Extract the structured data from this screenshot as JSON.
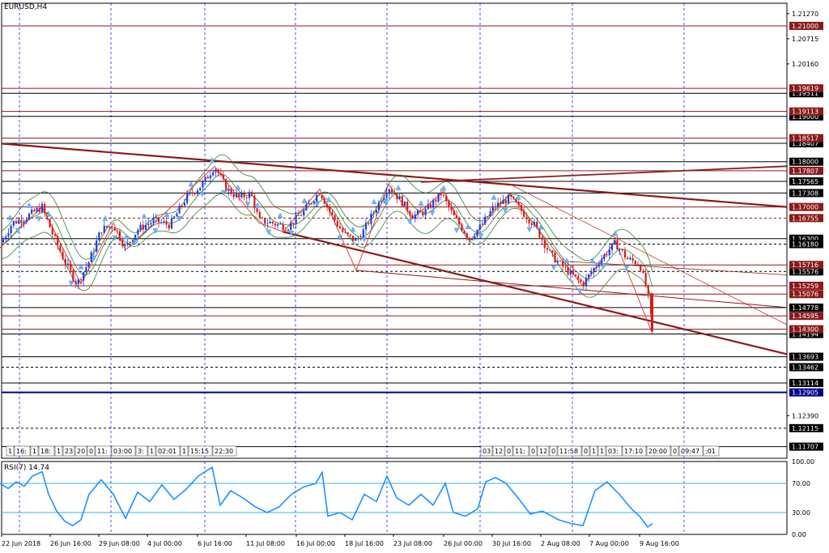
{
  "chart_data": [
    {
      "type": "candlestick",
      "title": "EURUSD,H4",
      "price_axis": {
        "range": [
          1.1145,
          1.215
        ],
        "ticks": [
          "1.21270",
          "1.20715",
          "1.20160",
          "1.19511",
          "1.19000",
          "1.18407",
          "1.18000",
          "1.17565",
          "1.17308",
          "1.17000",
          "1.16755",
          "1.16300",
          "1.16180",
          "1.15576",
          "1.15076",
          "1.14778",
          "1.14595",
          "1.14194",
          "1.13693",
          "1.13462",
          "1.13114",
          "1.12905",
          "1.12390",
          "1.12115",
          "1.11707"
        ]
      },
      "horizontal_levels": [
        {
          "price": 1.21,
          "label": "1.21000",
          "color": "#8b1a1a",
          "badge": true
        },
        {
          "price": 1.19511,
          "label": "1.19511",
          "color": "#000000",
          "badge": true
        },
        {
          "price": 1.1962,
          "label": "1.19619",
          "color": "#8b1a1a",
          "badge": true
        },
        {
          "price": 1.1911,
          "label": "1.19113",
          "color": "#8b1a1a",
          "badge": true
        },
        {
          "price": 1.19,
          "label": "1.19000",
          "color": "#000000",
          "badge": true
        },
        {
          "price": 1.1852,
          "label": "1.18517",
          "color": "#8b1a1a",
          "badge": true
        },
        {
          "price": 1.18407,
          "label": "1.18407",
          "color": "#000000",
          "badge": true
        },
        {
          "price": 1.18,
          "label": "1.18000",
          "color": "#000000",
          "badge": true
        },
        {
          "price": 1.178,
          "label": "1.17807",
          "color": "#8b1a1a",
          "badge": true
        },
        {
          "price": 1.17565,
          "label": "1.17565",
          "color": "#000000",
          "badge": true
        },
        {
          "price": 1.17308,
          "label": "1.17308",
          "color": "#000000",
          "badge": true
        },
        {
          "price": 1.17,
          "label": "1.17000",
          "color": "#8b1a1a",
          "badge": true
        },
        {
          "price": 1.16755,
          "label": "1.16755",
          "color": "#8b1a1a",
          "badge": true,
          "dashed": true
        },
        {
          "price": 1.163,
          "label": "1.16300",
          "color": "#000000",
          "badge": true
        },
        {
          "price": 1.1618,
          "label": "1.16180",
          "color": "#000000",
          "badge": true,
          "dashed": true
        },
        {
          "price": 1.1572,
          "label": "1.15716",
          "color": "#8b1a1a",
          "badge": true
        },
        {
          "price": 1.15576,
          "label": "1.15576",
          "color": "#000000",
          "badge": true,
          "dashed": true
        },
        {
          "price": 1.1526,
          "label": "1.15259",
          "color": "#8b1a1a",
          "badge": true
        },
        {
          "price": 1.15076,
          "label": "1.15076",
          "color": "#8b1a1a",
          "badge": true
        },
        {
          "price": 1.14778,
          "label": "1.14778",
          "color": "#000000",
          "badge": true
        },
        {
          "price": 1.14595,
          "label": "1.14595",
          "color": "#8b1a1a",
          "badge": true
        },
        {
          "price": 1.143,
          "label": "1.14300",
          "color": "#8b1a1a",
          "badge": true
        },
        {
          "price": 1.14194,
          "label": "1.14194",
          "color": "#000000",
          "badge": true
        },
        {
          "price": 1.13693,
          "label": "1.13693",
          "color": "#000000",
          "badge": true
        },
        {
          "price": 1.13462,
          "label": "1.13462",
          "color": "#000000",
          "badge": true,
          "dashed": true
        },
        {
          "price": 1.13114,
          "label": "1.13114",
          "color": "#000000",
          "badge": true
        },
        {
          "price": 1.12905,
          "label": "1.12905",
          "color": "#00008b",
          "badge": true,
          "thick": true
        },
        {
          "price": 1.12115,
          "label": "1.12115",
          "color": "#000000",
          "badge": true,
          "dashed": true
        },
        {
          "price": 1.11707,
          "label": "1.11707",
          "color": "#000000",
          "badge": true
        }
      ],
      "time_axis": [
        "22 Jun 2018",
        "26 Jun 16:00",
        "29 Jun 08:00",
        "4 Jul 00:00",
        "6 Jul 16:00",
        "11 Jul 08:00",
        "16 Jul 00:00",
        "18 Jul 16:00",
        "23 Jul 08:00",
        "26 Jul 00:00",
        "30 Jul 16:00",
        "2 Aug 08:00",
        "7 Aug 00:00",
        "9 Aug 16:00"
      ],
      "price_path": [
        [
          0,
          1.1615
        ],
        [
          15,
          1.1665
        ],
        [
          30,
          1.1675
        ],
        [
          52,
          1.17
        ],
        [
          65,
          1.164
        ],
        [
          80,
          1.158
        ],
        [
          95,
          1.153
        ],
        [
          110,
          1.158
        ],
        [
          125,
          1.165
        ],
        [
          140,
          1.166
        ],
        [
          155,
          1.161
        ],
        [
          170,
          1.165
        ],
        [
          190,
          1.167
        ],
        [
          210,
          1.166
        ],
        [
          230,
          1.172
        ],
        [
          250,
          1.175
        ],
        [
          265,
          1.179
        ],
        [
          280,
          1.174
        ],
        [
          295,
          1.172
        ],
        [
          310,
          1.173
        ],
        [
          320,
          1.167
        ],
        [
          335,
          1.1665
        ],
        [
          355,
          1.1655
        ],
        [
          375,
          1.169
        ],
        [
          395,
          1.1735
        ],
        [
          410,
          1.168
        ],
        [
          425,
          1.164
        ],
        [
          440,
          1.1625
        ],
        [
          450,
          1.165
        ],
        [
          465,
          1.17
        ],
        [
          480,
          1.1745
        ],
        [
          495,
          1.1715
        ],
        [
          510,
          1.168
        ],
        [
          525,
          1.169
        ],
        [
          545,
          1.173
        ],
        [
          560,
          1.168
        ],
        [
          580,
          1.163
        ],
        [
          595,
          1.166
        ],
        [
          610,
          1.17
        ],
        [
          630,
          1.172
        ],
        [
          645,
          1.169
        ],
        [
          660,
          1.166
        ],
        [
          680,
          1.1595
        ],
        [
          700,
          1.156
        ],
        [
          720,
          1.153
        ],
        [
          740,
          1.158
        ],
        [
          760,
          1.162
        ],
        [
          775,
          1.1585
        ],
        [
          790,
          1.1575
        ],
        [
          800,
          1.151
        ],
        [
          806,
          1.143
        ]
      ],
      "indicator": {
        "name": "RSI(7)",
        "value": "14.74",
        "range": [
          0,
          100
        ],
        "ticks": [
          "100.00",
          "70.00",
          "30.00",
          "0.00"
        ],
        "levels": [
          70,
          30
        ],
        "values": [
          [
            0,
            70
          ],
          [
            10,
            63
          ],
          [
            20,
            72
          ],
          [
            30,
            66
          ],
          [
            40,
            80
          ],
          [
            52,
            86
          ],
          [
            60,
            55
          ],
          [
            70,
            32
          ],
          [
            80,
            18
          ],
          [
            90,
            12
          ],
          [
            100,
            20
          ],
          [
            110,
            55
          ],
          [
            125,
            75
          ],
          [
            140,
            55
          ],
          [
            155,
            22
          ],
          [
            170,
            58
          ],
          [
            185,
            45
          ],
          [
            200,
            68
          ],
          [
            215,
            48
          ],
          [
            230,
            62
          ],
          [
            245,
            80
          ],
          [
            262,
            92
          ],
          [
            272,
            40
          ],
          [
            285,
            60
          ],
          [
            300,
            50
          ],
          [
            315,
            38
          ],
          [
            330,
            30
          ],
          [
            345,
            38
          ],
          [
            360,
            55
          ],
          [
            375,
            65
          ],
          [
            390,
            70
          ],
          [
            398,
            85
          ],
          [
            405,
            25
          ],
          [
            420,
            30
          ],
          [
            435,
            20
          ],
          [
            450,
            55
          ],
          [
            465,
            45
          ],
          [
            478,
            80
          ],
          [
            490,
            50
          ],
          [
            505,
            40
          ],
          [
            520,
            55
          ],
          [
            535,
            40
          ],
          [
            550,
            70
          ],
          [
            560,
            30
          ],
          [
            575,
            25
          ],
          [
            590,
            35
          ],
          [
            600,
            72
          ],
          [
            612,
            78
          ],
          [
            625,
            70
          ],
          [
            640,
            50
          ],
          [
            655,
            28
          ],
          [
            670,
            32
          ],
          [
            690,
            20
          ],
          [
            705,
            15
          ],
          [
            720,
            12
          ],
          [
            735,
            60
          ],
          [
            750,
            72
          ],
          [
            765,
            55
          ],
          [
            780,
            35
          ],
          [
            790,
            25
          ],
          [
            800,
            10
          ],
          [
            806,
            15
          ]
        ]
      },
      "time_labels_boxes": [
        "1",
        "16:",
        "1",
        "18:",
        "1",
        "23",
        "20",
        "0",
        "11:",
        "03:00",
        "3:",
        "1",
        "02:01",
        "1",
        "15:15",
        "22:30",
        "03",
        "12",
        "0",
        "11:",
        "0",
        "12",
        "0",
        "11:58",
        "0",
        "1",
        "1",
        "03:",
        "17:10",
        "20:00",
        "0",
        "09:47",
        ":01"
      ]
    }
  ]
}
